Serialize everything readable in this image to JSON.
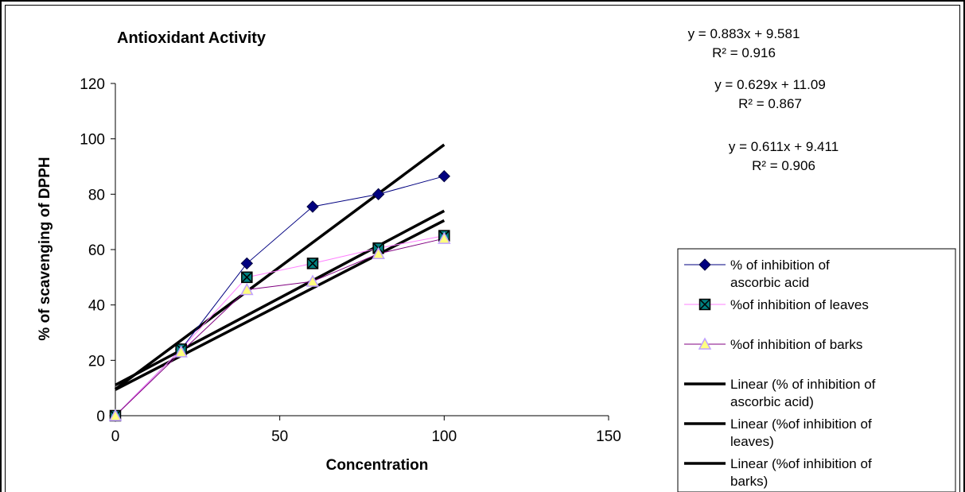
{
  "chart_data": {
    "type": "line",
    "title": "Antioxidant Activity",
    "xlabel": "Concentration",
    "ylabel": "% of scavenging of DPPH",
    "xlim": [
      0,
      150
    ],
    "ylim": [
      0,
      120
    ],
    "xticks": [
      "0",
      "50",
      "100",
      "150"
    ],
    "yticks": [
      "0",
      "20",
      "40",
      "60",
      "80",
      "100",
      "120"
    ],
    "x": [
      0,
      20,
      40,
      60,
      80,
      100
    ],
    "series": [
      {
        "name": "% of inhibition of ascorbic acid",
        "values": [
          0,
          24,
          55,
          75.5,
          80,
          86.5
        ],
        "color": "#000080",
        "marker": "diamond"
      },
      {
        "name": "%of inhibition of leaves",
        "values": [
          0,
          24,
          50,
          55,
          60.5,
          65
        ],
        "color": "#ff80ff",
        "marker": "x-square"
      },
      {
        "name": "%of inhibition of barks",
        "values": [
          0,
          23,
          45.5,
          48.5,
          58.5,
          64
        ],
        "color": "#800080",
        "marker": "triangle"
      }
    ],
    "trendlines": [
      {
        "name": "Linear (% of inhibition of ascorbic acid)",
        "slope": 0.883,
        "intercept": 9.581,
        "equation": "y = 0.883x + 9.581",
        "r2": "R² = 0.916"
      },
      {
        "name": "Linear (%of inhibition of leaves)",
        "slope": 0.629,
        "intercept": 11.09,
        "equation": "y = 0.629x + 11.09",
        "r2": "R² = 0.867"
      },
      {
        "name": "Linear (%of inhibition of barks)",
        "slope": 0.611,
        "intercept": 9.411,
        "equation": "y = 0.611x + 9.411",
        "r2": "R² = 0.906"
      }
    ],
    "grid": false,
    "legend_position": "right"
  }
}
